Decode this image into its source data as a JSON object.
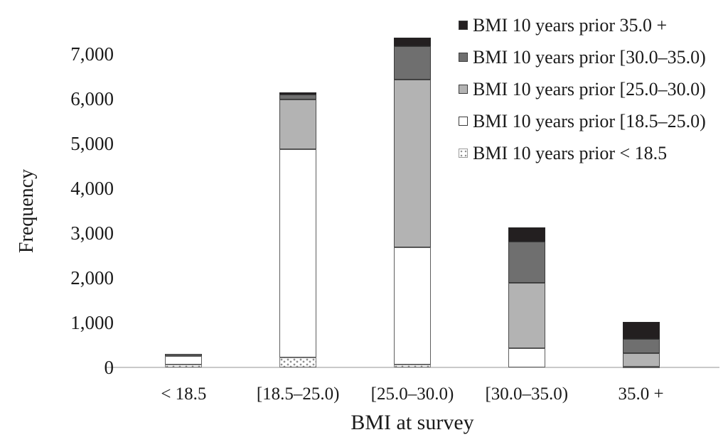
{
  "chart_data": {
    "type": "bar",
    "stacked": true,
    "title": "",
    "xlabel": "BMI at survey",
    "ylabel": "Frequency",
    "categories": [
      "< 18.5",
      "[18.5–25.0)",
      "[25.0–30.0)",
      "[30.0–35.0)",
      "35.0 +"
    ],
    "series": [
      {
        "name": "BMI 10 years prior 35.0 +",
        "color": "#231f20",
        "pattern": "solid",
        "values": [
          0,
          40,
          190,
          315,
          380
        ]
      },
      {
        "name": "BMI 10 years prior [30.0–35.0)",
        "color": "#6f6f6f",
        "pattern": "solid",
        "values": [
          50,
          120,
          745,
          920,
          315
        ]
      },
      {
        "name": "BMI 10 years prior [25.0–30.0)",
        "color": "#b3b3b3",
        "pattern": "solid",
        "values": [
          0,
          1110,
          3740,
          1460,
          300
        ]
      },
      {
        "name": "BMI 10 years prior [18.5–25.0)",
        "color": "#ffffff",
        "pattern": "solid",
        "values": [
          190,
          4645,
          2615,
          430,
          20
        ]
      },
      {
        "name": "BMI 10 years prior < 18.5",
        "color": "#ffffff",
        "pattern": "dots",
        "values": [
          60,
          220,
          65,
          0,
          0
        ]
      }
    ],
    "totals": [
      300,
      6135,
      7355,
      3125,
      1015
    ],
    "ylim": [
      0,
      7500
    ],
    "yticks": [
      0,
      1000,
      2000,
      3000,
      4000,
      5000,
      6000,
      7000
    ],
    "ytick_labels": [
      "0",
      "1,000",
      "2,000",
      "3,000",
      "4,000",
      "5,000",
      "6,000",
      "7,000"
    ],
    "grid": false,
    "legend_position": "top-right",
    "axis_line_color": "#c9c9c9",
    "segment_stack_order_bottom_to_top": [
      "< 18.5",
      "[18.5–25.0)",
      "[25.0–30.0)",
      "[30.0–35.0)",
      "35.0 +"
    ]
  }
}
